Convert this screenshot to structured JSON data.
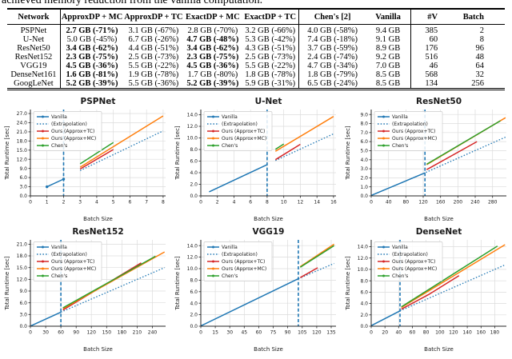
{
  "caption_fragment": "achieved memory reduction from the vanilla computation.",
  "colors": {
    "vanilla_blue": "#1f77b4",
    "approx_tc_red": "#d62728",
    "approx_mc_orange": "#ff7f0e",
    "chens_green": "#2ca02c",
    "grid_gray": "#dcdcdc"
  },
  "table": {
    "headers": [
      "Network",
      "ApproxDP + MC",
      "ApproxDP + TC",
      "ExactDP + MC",
      "ExactDP + TC",
      "Chen's [2]",
      "Vanilla",
      "#V",
      "Batch"
    ],
    "rows": [
      [
        {
          "t": "PSPNet",
          "b": false
        },
        {
          "t": "2.7 GB (-71%)",
          "b": true
        },
        {
          "t": "3.1 GB (-67%)",
          "b": false
        },
        {
          "t": "2.8 GB (-70%)",
          "b": false
        },
        {
          "t": "3.2 GB (-66%)",
          "b": false
        },
        {
          "t": "4.0 GB (-58%)",
          "b": false
        },
        {
          "t": "9.4 GB",
          "b": false
        },
        {
          "t": "385",
          "b": false
        },
        {
          "t": "2",
          "b": false
        }
      ],
      [
        {
          "t": "U-Net",
          "b": false
        },
        {
          "t": "5.0 GB (-45%)",
          "b": false
        },
        {
          "t": "6.7 GB (-26%)",
          "b": false
        },
        {
          "t": "4.7 GB (-48%)",
          "b": true
        },
        {
          "t": "5.3 GB (-42%)",
          "b": false
        },
        {
          "t": "7.4 GB (-18%)",
          "b": false
        },
        {
          "t": "9.1 GB",
          "b": false
        },
        {
          "t": "60",
          "b": false
        },
        {
          "t": "8",
          "b": false
        }
      ],
      [
        {
          "t": "ResNet50",
          "b": false
        },
        {
          "t": "3.4 GB (-62%)",
          "b": true
        },
        {
          "t": "4.4 GB (-51%)",
          "b": false
        },
        {
          "t": "3.4 GB (-62%)",
          "b": true
        },
        {
          "t": "4.3 GB (-51%)",
          "b": false
        },
        {
          "t": "3.7 GB (-59%)",
          "b": false
        },
        {
          "t": "8.9 GB",
          "b": false
        },
        {
          "t": "176",
          "b": false
        },
        {
          "t": "96",
          "b": false
        }
      ],
      [
        {
          "t": "ResNet152",
          "b": false
        },
        {
          "t": "2.3 GB (-75%)",
          "b": true
        },
        {
          "t": "2.5 GB (-73%)",
          "b": false
        },
        {
          "t": "2.3 GB (-75%)",
          "b": true
        },
        {
          "t": "2.5 GB (-73%)",
          "b": false
        },
        {
          "t": "2.4 GB (-74%)",
          "b": false
        },
        {
          "t": "9.2 GB",
          "b": false
        },
        {
          "t": "516",
          "b": false
        },
        {
          "t": "48",
          "b": false
        }
      ],
      [
        {
          "t": "VGG19",
          "b": false
        },
        {
          "t": "4.5 GB (-36%)",
          "b": true
        },
        {
          "t": "5.5 GB (-22%)",
          "b": false
        },
        {
          "t": "4.5 GB (-36%)",
          "b": true
        },
        {
          "t": "5.5 GB (-22%)",
          "b": false
        },
        {
          "t": "4.7 GB (-34%)",
          "b": false
        },
        {
          "t": "7.0 GB",
          "b": false
        },
        {
          "t": "46",
          "b": false
        },
        {
          "t": "64",
          "b": false
        }
      ],
      [
        {
          "t": "DenseNet161",
          "b": false
        },
        {
          "t": "1.6 GB (-81%)",
          "b": true
        },
        {
          "t": "1.9 GB (-78%)",
          "b": false
        },
        {
          "t": "1.7 GB (-80%)",
          "b": false
        },
        {
          "t": "1.8 GB (-78%)",
          "b": false
        },
        {
          "t": "1.8 GB (-79%)",
          "b": false
        },
        {
          "t": "8.5 GB",
          "b": false
        },
        {
          "t": "568",
          "b": false
        },
        {
          "t": "32",
          "b": false
        }
      ],
      [
        {
          "t": "GoogLeNet",
          "b": false
        },
        {
          "t": "5.2 GB (-39%)",
          "b": true
        },
        {
          "t": "5.5 GB (-36%)",
          "b": false
        },
        {
          "t": "5.2 GB (-39%)",
          "b": true
        },
        {
          "t": "5.9 GB (-31%)",
          "b": false
        },
        {
          "t": "6.5 GB (-24%)",
          "b": false
        },
        {
          "t": "8.5 GB",
          "b": false
        },
        {
          "t": "134",
          "b": false
        },
        {
          "t": "256",
          "b": false
        }
      ]
    ]
  },
  "legend_labels": [
    "Vanilla",
    "(Extrapolation)",
    "Ours (Approx+TC)",
    "Ours (Approx+MC)",
    "Chen's"
  ],
  "chart_data": [
    {
      "type": "line",
      "title": "PSPNet",
      "xlabel": "Batch Size",
      "ylabel": "Total Runtime [sec]",
      "xlim": [
        0,
        8.15
      ],
      "ylim": [
        0,
        28.3
      ],
      "xticks": [
        0,
        1,
        2,
        3,
        4,
        5,
        6,
        7,
        8
      ],
      "yticks": [
        0,
        3,
        6,
        9,
        12,
        15,
        18,
        21,
        24,
        27
      ],
      "grid": true,
      "legend_position": "upper-left",
      "vline_x": 2,
      "vline_color": "#1f77b4",
      "series": [
        {
          "name": "Vanilla",
          "color": "#1f77b4",
          "dash": "solid",
          "markers": true,
          "points": [
            [
              1,
              3.0
            ],
            [
              2,
              5.5
            ]
          ]
        },
        {
          "name": "(Extrapolation)",
          "color": "#1f77b4",
          "dash": "dotted",
          "markers": false,
          "points": [
            [
              3,
              8.3
            ],
            [
              8,
              21.3
            ]
          ]
        },
        {
          "name": "Ours (Approx+TC)",
          "color": "#d62728",
          "dash": "solid",
          "markers": false,
          "points": [
            [
              3,
              8.8
            ],
            [
              5,
              15.2
            ]
          ]
        },
        {
          "name": "Ours (Approx+MC)",
          "color": "#ff7f0e",
          "dash": "solid",
          "markers": false,
          "points": [
            [
              3,
              9.4
            ],
            [
              8,
              26.2
            ]
          ]
        },
        {
          "name": "Chen's",
          "color": "#2ca02c",
          "dash": "solid",
          "markers": false,
          "points": [
            [
              3,
              10.5
            ],
            [
              5,
              17.5
            ]
          ]
        }
      ]
    },
    {
      "type": "line",
      "title": "U-Net",
      "xlabel": "Batch Size",
      "ylabel": "Total Runtime [sec]",
      "xlim": [
        0,
        16.3
      ],
      "ylim": [
        0,
        14.9
      ],
      "xticks": [
        0,
        2,
        4,
        6,
        8,
        10,
        12,
        14,
        16
      ],
      "yticks": [
        0,
        2,
        4,
        6,
        8,
        10,
        12,
        14
      ],
      "grid": true,
      "legend_position": "upper-left",
      "vline_x": 8,
      "vline_color": "#1f77b4",
      "series": [
        {
          "name": "Vanilla",
          "color": "#1f77b4",
          "dash": "solid",
          "markers": false,
          "points": [
            [
              1,
              0.7
            ],
            [
              8,
              5.4
            ]
          ]
        },
        {
          "name": "(Extrapolation)",
          "color": "#1f77b4",
          "dash": "dotted",
          "markers": false,
          "points": [
            [
              9,
              6.1
            ],
            [
              16,
              10.7
            ]
          ]
        },
        {
          "name": "Ours (Approx+TC)",
          "color": "#d62728",
          "dash": "solid",
          "markers": false,
          "points": [
            [
              9,
              6.25
            ],
            [
              12,
              8.9
            ]
          ]
        },
        {
          "name": "Ours (Approx+MC)",
          "color": "#ff7f0e",
          "dash": "solid",
          "markers": false,
          "points": [
            [
              9,
              7.7
            ],
            [
              16,
              13.7
            ]
          ]
        },
        {
          "name": "Chen's",
          "color": "#2ca02c",
          "dash": "solid",
          "markers": false,
          "points": [
            [
              9,
              8.05
            ],
            [
              10,
              8.95
            ]
          ]
        }
      ]
    },
    {
      "type": "line",
      "title": "ResNet50",
      "xlabel": "Batch Size",
      "ylabel": "Total Runtime [sec]",
      "xlim": [
        0,
        312
      ],
      "ylim": [
        0,
        9.55
      ],
      "xticks": [
        0,
        40,
        80,
        120,
        160,
        200,
        240,
        280
      ],
      "yticks": [
        0,
        1,
        2,
        3,
        4,
        5,
        6,
        7,
        8,
        9
      ],
      "grid": true,
      "legend_position": "upper-left",
      "vline_x": 124,
      "vline_color": "#1f77b4",
      "series": [
        {
          "name": "Vanilla",
          "color": "#1f77b4",
          "dash": "solid",
          "markers": false,
          "points": [
            [
              0,
              0.05
            ],
            [
              124,
              2.55
            ]
          ]
        },
        {
          "name": "(Extrapolation)",
          "color": "#1f77b4",
          "dash": "dotted",
          "markers": false,
          "points": [
            [
              126,
              2.6
            ],
            [
              310,
              6.5
            ]
          ]
        },
        {
          "name": "Ours (Approx+TC)",
          "color": "#d62728",
          "dash": "solid",
          "markers": false,
          "points": [
            [
              128,
              2.9
            ],
            [
              244,
              6.0
            ]
          ]
        },
        {
          "name": "Ours (Approx+MC)",
          "color": "#ff7f0e",
          "dash": "solid",
          "markers": false,
          "points": [
            [
              128,
              3.45
            ],
            [
              310,
              8.65
            ]
          ]
        },
        {
          "name": "Chen's",
          "color": "#2ca02c",
          "dash": "solid",
          "markers": false,
          "points": [
            [
              128,
              3.5
            ],
            [
              298,
              8.3
            ]
          ]
        }
      ]
    },
    {
      "type": "line",
      "title": "ResNet152",
      "xlabel": "Batch Size",
      "ylabel": "Total Runtime [sec]",
      "xlim": [
        0,
        266
      ],
      "ylim": [
        0,
        22.1
      ],
      "xticks": [
        0,
        30,
        60,
        90,
        120,
        150,
        180,
        210,
        240
      ],
      "yticks": [
        0,
        3,
        6,
        9,
        12,
        15,
        18,
        21
      ],
      "grid": true,
      "legend_position": "upper-left",
      "vline_x": 60,
      "vline_color": "#1f77b4",
      "series": [
        {
          "name": "Vanilla",
          "color": "#1f77b4",
          "dash": "solid",
          "markers": false,
          "points": [
            [
              0,
              0.05
            ],
            [
              60,
              3.6
            ]
          ]
        },
        {
          "name": "(Extrapolation)",
          "color": "#1f77b4",
          "dash": "dotted",
          "markers": false,
          "points": [
            [
              60,
              3.6
            ],
            [
              264,
              15.0
            ]
          ]
        },
        {
          "name": "Ours (Approx+TC)",
          "color": "#d62728",
          "dash": "solid",
          "markers": false,
          "points": [
            [
              64,
              4.15
            ],
            [
              218,
              16.2
            ]
          ]
        },
        {
          "name": "Ours (Approx+MC)",
          "color": "#ff7f0e",
          "dash": "solid",
          "markers": false,
          "points": [
            [
              64,
              4.5
            ],
            [
              264,
              19.0
            ]
          ]
        },
        {
          "name": "Chen's",
          "color": "#2ca02c",
          "dash": "solid",
          "markers": false,
          "points": [
            [
              64,
              4.7
            ],
            [
              246,
              17.9
            ]
          ]
        }
      ]
    },
    {
      "type": "line",
      "title": "VGG19",
      "xlabel": "Batch Size",
      "ylabel": "Total Runtime [sec]",
      "xlim": [
        0,
        140
      ],
      "ylim": [
        0,
        15.0
      ],
      "xticks": [
        0,
        15,
        30,
        45,
        60,
        75,
        90,
        105,
        120,
        135
      ],
      "yticks": [
        0,
        2,
        4,
        6,
        8,
        10,
        12,
        14
      ],
      "grid": true,
      "legend_position": "upper-left",
      "vline_x": 101,
      "vline_color": "#1f77b4",
      "series": [
        {
          "name": "Vanilla",
          "color": "#1f77b4",
          "dash": "solid",
          "markers": false,
          "points": [
            [
              0,
              0.05
            ],
            [
              101,
              8.25
            ]
          ]
        },
        {
          "name": "(Extrapolation)",
          "color": "#1f77b4",
          "dash": "dotted",
          "markers": false,
          "points": [
            [
              101,
              8.25
            ],
            [
              138,
              10.9
            ]
          ]
        },
        {
          "name": "Ours (Approx+TC)",
          "color": "#d62728",
          "dash": "solid",
          "markers": false,
          "points": [
            [
              103,
              8.45
            ],
            [
              121,
              10.15
            ]
          ]
        },
        {
          "name": "Ours (Approx+MC)",
          "color": "#ff7f0e",
          "dash": "solid",
          "markers": false,
          "points": [
            [
              103,
              10.35
            ],
            [
              138,
              14.25
            ]
          ]
        },
        {
          "name": "Chen's",
          "color": "#2ca02c",
          "dash": "solid",
          "markers": false,
          "points": [
            [
              103,
              10.25
            ],
            [
              138,
              14.0
            ]
          ]
        }
      ]
    },
    {
      "type": "line",
      "title": "DenseNet",
      "xlabel": "Batch Size",
      "ylabel": "Total Runtime [sec]",
      "xlim": [
        0,
        197
      ],
      "ylim": [
        0,
        15.2
      ],
      "xticks": [
        0,
        20,
        40,
        60,
        80,
        100,
        120,
        140,
        160,
        180
      ],
      "yticks": [
        0,
        2,
        4,
        6,
        8,
        10,
        12,
        14
      ],
      "grid": true,
      "legend_position": "upper-left",
      "vline_x": 42,
      "vline_color": "#1f77b4",
      "series": [
        {
          "name": "Vanilla",
          "color": "#1f77b4",
          "dash": "solid",
          "markers": false,
          "points": [
            [
              0,
              0.1
            ],
            [
              42,
              2.7
            ]
          ]
        },
        {
          "name": "(Extrapolation)",
          "color": "#1f77b4",
          "dash": "dotted",
          "markers": false,
          "points": [
            [
              42,
              2.7
            ],
            [
              195,
              10.8
            ]
          ]
        },
        {
          "name": "Ours (Approx+TC)",
          "color": "#d62728",
          "dash": "solid",
          "markers": false,
          "points": [
            [
              44,
              3.0
            ],
            [
              84,
              5.6
            ],
            [
              128,
              8.9
            ]
          ]
        },
        {
          "name": "Ours (Approx+MC)",
          "color": "#ff7f0e",
          "dash": "solid",
          "markers": false,
          "points": [
            [
              44,
              3.3
            ],
            [
              195,
              14.35
            ]
          ]
        },
        {
          "name": "Chen's",
          "color": "#2ca02c",
          "dash": "solid",
          "markers": false,
          "points": [
            [
              44,
              3.4
            ],
            [
              184,
              14.1
            ]
          ]
        }
      ]
    }
  ]
}
